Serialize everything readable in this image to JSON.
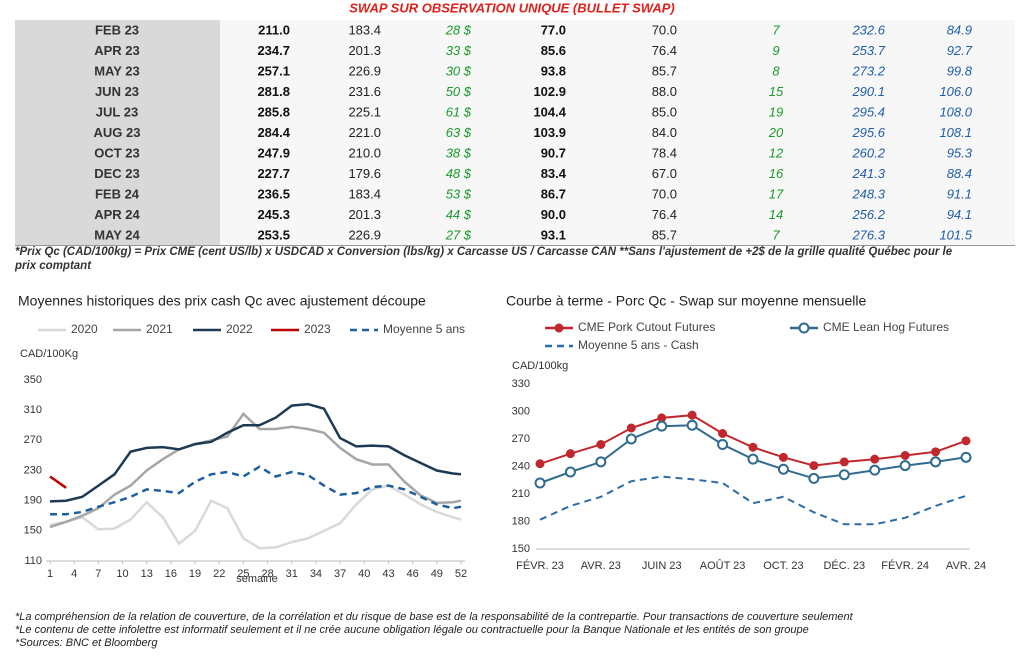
{
  "table": {
    "title": "SWAP SUR OBSERVATION UNIQUE (BULLET SWAP)",
    "rows": [
      [
        "FEB 23",
        "211.0",
        "183.4",
        "28 $",
        "77.0",
        "70.0",
        "7",
        "232.6",
        "84.9"
      ],
      [
        "APR 23",
        "234.7",
        "201.3",
        "33 $",
        "85.6",
        "76.4",
        "9",
        "253.7",
        "92.7"
      ],
      [
        "MAY 23",
        "257.1",
        "226.9",
        "30 $",
        "93.8",
        "85.7",
        "8",
        "273.2",
        "99.8"
      ],
      [
        "JUN 23",
        "281.8",
        "231.6",
        "50 $",
        "102.9",
        "88.0",
        "15",
        "290.1",
        "106.0"
      ],
      [
        "JUL 23",
        "285.8",
        "225.1",
        "61 $",
        "104.4",
        "85.0",
        "19",
        "295.4",
        "108.0"
      ],
      [
        "AUG 23",
        "284.4",
        "221.0",
        "63 $",
        "103.9",
        "84.0",
        "20",
        "295.6",
        "108.1"
      ],
      [
        "OCT 23",
        "247.9",
        "210.0",
        "38 $",
        "90.7",
        "78.4",
        "12",
        "260.2",
        "95.3"
      ],
      [
        "DEC 23",
        "227.7",
        "179.6",
        "48 $",
        "83.4",
        "67.0",
        "16",
        "241.3",
        "88.4"
      ],
      [
        "FEB 24",
        "236.5",
        "183.4",
        "53 $",
        "86.7",
        "70.0",
        "17",
        "248.3",
        "91.1"
      ],
      [
        "APR 24",
        "245.3",
        "201.3",
        "44 $",
        "90.0",
        "76.4",
        "14",
        "256.2",
        "94.1"
      ],
      [
        "MAY 24",
        "253.5",
        "226.9",
        "27 $",
        "93.1",
        "85.7",
        "7",
        "276.3",
        "101.5"
      ]
    ],
    "footnote": [
      "*Prix Qc (CAD/100kg) = Prix CME (cent US/lb) x USDCAD x Conversion (lbs/kg) x Carcasse US / Carcasse CAN **Sans l'ajustement de +2$ de la grille qualité Québec pour le",
      "prix comptant"
    ]
  },
  "chart_data": [
    {
      "type": "line",
      "title": "Moyennes historiques des prix cash Qc avec ajustement découpe",
      "y_label": "CAD/100Kg",
      "x_label": "semaine",
      "x": [
        1,
        3,
        5,
        7,
        9,
        11,
        13,
        15,
        17,
        19,
        21,
        23,
        25,
        27,
        29,
        31,
        33,
        35,
        37,
        39,
        41,
        43,
        45,
        47,
        49,
        51,
        52
      ],
      "xlim": [
        1,
        52
      ],
      "xticks": [
        1,
        4,
        7,
        10,
        13,
        16,
        19,
        22,
        25,
        28,
        31,
        34,
        37,
        40,
        43,
        46,
        49,
        52
      ],
      "ylim": [
        110,
        350
      ],
      "yticks": [
        110,
        150,
        190,
        230,
        270,
        310,
        350
      ],
      "series": [
        {
          "name": "2020",
          "color": "#d9d9d9",
          "values": [
            158,
            162,
            168,
            152,
            153,
            165,
            188,
            168,
            133,
            150,
            190,
            180,
            140,
            127,
            128,
            135,
            140,
            150,
            160,
            185,
            205,
            210,
            198,
            185,
            175,
            168,
            165
          ]
        },
        {
          "name": "2021",
          "color": "#a6a6a6",
          "values": [
            155,
            162,
            170,
            180,
            198,
            210,
            230,
            245,
            258,
            265,
            270,
            275,
            305,
            285,
            285,
            288,
            285,
            280,
            260,
            245,
            238,
            238,
            215,
            197,
            187,
            188,
            190
          ]
        },
        {
          "name": "2022",
          "color": "#1c3a56",
          "values": [
            189,
            190,
            195,
            210,
            225,
            255,
            260,
            261,
            258,
            265,
            268,
            280,
            290,
            290,
            300,
            316,
            318,
            312,
            273,
            262,
            263,
            262,
            250,
            240,
            230,
            226,
            225
          ]
        },
        {
          "name": "2023",
          "color": "#c00000",
          "values": [
            222,
            207,
            null,
            null,
            null,
            null,
            null,
            null,
            null,
            null,
            null,
            null,
            null,
            null,
            null,
            null,
            null,
            null,
            null,
            null,
            null,
            null,
            null,
            null,
            null,
            null,
            null
          ]
        },
        {
          "name": "Moyenne 5 ans",
          "color": "#1f5f9f",
          "dashed": true,
          "values": [
            172,
            172,
            175,
            182,
            188,
            195,
            205,
            203,
            200,
            215,
            225,
            228,
            222,
            235,
            222,
            228,
            224,
            210,
            198,
            200,
            208,
            210,
            205,
            195,
            185,
            180,
            182
          ]
        }
      ]
    },
    {
      "type": "line",
      "title": "Courbe à terme - Porc Qc - Swap sur moyenne mensuelle",
      "y_label": "CAD/100kg",
      "categories": [
        "FÉVR. 23",
        null,
        "AVR. 23",
        null,
        "JUIN 23",
        null,
        "AOÛT 23",
        null,
        "OCT. 23",
        null,
        "DÉC. 23",
        null,
        "FÉVR. 24",
        null,
        "AVR. 24"
      ],
      "ylim": [
        150,
        330
      ],
      "yticks": [
        150,
        180,
        210,
        240,
        270,
        300,
        330
      ],
      "series": [
        {
          "name": "CME Pork Cutout Futures",
          "color": "#c0282d",
          "marker": "filled",
          "values": [
            243,
            254,
            264,
            282,
            293,
            296,
            276,
            261,
            250,
            241,
            245,
            248,
            252,
            256,
            268
          ]
        },
        {
          "name": "CME Lean Hog Futures",
          "color": "#2e6b8f",
          "marker": "open",
          "values": [
            222,
            234,
            245,
            270,
            284,
            285,
            264,
            248,
            237,
            227,
            231,
            236,
            241,
            245,
            250
          ]
        },
        {
          "name": "Moyenne 5 ans - Cash",
          "color": "#2e6da4",
          "dashed": true,
          "values": [
            182,
            197,
            207,
            224,
            229,
            226,
            222,
            200,
            207,
            190,
            177,
            177,
            184,
            197,
            208
          ]
        }
      ]
    }
  ],
  "notes": [
    "*La compréhension de la relation de couverture, de la corrélation et du risque de base est de la responsabilité de la contrepartie. Pour transactions de couverture seulement",
    "*Le contenu de cette infolettre est informatif seulement et il ne crée aucune obligation légale ou contractuelle pour la Banque Nationale et les entités de son groupe",
    "*Sources: BNC et Bloomberg"
  ]
}
